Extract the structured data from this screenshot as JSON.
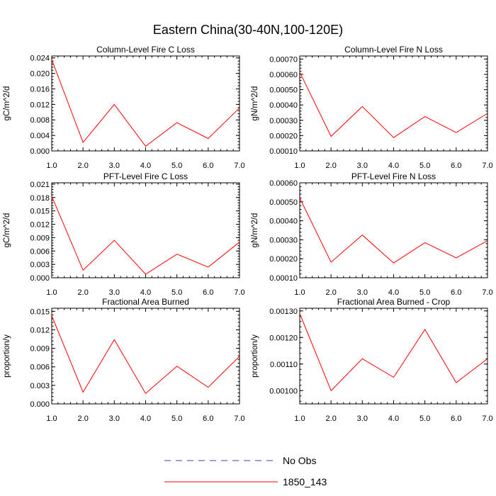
{
  "figure_title": "Eastern China(30-40N,100-120E)",
  "legend": {
    "entries": [
      {
        "label": "No Obs",
        "color": "#3b3bbf",
        "style": "dashed"
      },
      {
        "label": "1850_143",
        "color": "#ff0000",
        "style": "solid"
      }
    ]
  },
  "chart_data": [
    {
      "type": "line",
      "title": "Column-Level Fire C Loss",
      "ylabel": "gC/m^2/d",
      "x": [
        1,
        2,
        3,
        4,
        5,
        6,
        7
      ],
      "xticks": [
        "1.0",
        "2.0",
        "3.0",
        "4.0",
        "5.0",
        "6.0",
        "7.0"
      ],
      "xlim": [
        1,
        7
      ],
      "ylim": [
        0,
        0.0245
      ],
      "yticks": [
        0,
        0.004,
        0.008,
        0.012,
        0.016,
        0.02,
        0.024
      ],
      "yticklabels": [
        "0.000",
        "0.004",
        "0.008",
        "0.012",
        "0.016",
        "0.020",
        "0.024"
      ],
      "series": [
        {
          "name": "1850_143",
          "values": [
            0.0236,
            0.0022,
            0.012,
            0.0012,
            0.0073,
            0.0032,
            0.0111
          ]
        }
      ]
    },
    {
      "type": "line",
      "title": "Column-Level Fire N Loss",
      "ylabel": "gN/m^2/d",
      "x": [
        1,
        2,
        3,
        4,
        5,
        6,
        7
      ],
      "xticks": [
        "1.0",
        "2.0",
        "3.0",
        "4.0",
        "5.0",
        "6.0",
        "7.0"
      ],
      "xlim": [
        1,
        7
      ],
      "ylim": [
        0.0001,
        0.00072
      ],
      "yticks": [
        0.0001,
        0.0002,
        0.0003,
        0.0004,
        0.0005,
        0.0006,
        0.0007
      ],
      "yticklabels": [
        "0.00010",
        "0.00020",
        "0.00030",
        "0.00040",
        "0.00050",
        "0.00060",
        "0.00070"
      ],
      "series": [
        {
          "name": "1850_143",
          "values": [
            0.000615,
            0.000195,
            0.00039,
            0.000187,
            0.000325,
            0.00022,
            0.000345
          ]
        }
      ]
    },
    {
      "type": "line",
      "title": "PFT-Level Fire C Loss",
      "ylabel": "gC/m^2/d",
      "x": [
        1,
        2,
        3,
        4,
        5,
        6,
        7
      ],
      "xticks": [
        "1.0",
        "2.0",
        "3.0",
        "4.0",
        "5.0",
        "6.0",
        "7.0"
      ],
      "xlim": [
        1,
        7
      ],
      "ylim": [
        0,
        0.0213
      ],
      "yticks": [
        0,
        0.003,
        0.006,
        0.009,
        0.012,
        0.015,
        0.018,
        0.021
      ],
      "yticklabels": [
        "0.000",
        "0.003",
        "0.006",
        "0.009",
        "0.012",
        "0.015",
        "0.018",
        "0.021"
      ],
      "series": [
        {
          "name": "1850_143",
          "values": [
            0.0183,
            0.0017,
            0.0084,
            0.0008,
            0.0053,
            0.0024,
            0.008
          ]
        }
      ]
    },
    {
      "type": "line",
      "title": "PFT-Level Fire N Loss",
      "ylabel": "gN/m^2/d",
      "x": [
        1,
        2,
        3,
        4,
        5,
        6,
        7
      ],
      "xticks": [
        "1.0",
        "2.0",
        "3.0",
        "4.0",
        "5.0",
        "6.0",
        "7.0"
      ],
      "xlim": [
        1,
        7
      ],
      "ylim": [
        0.0001,
        0.0006
      ],
      "yticks": [
        0.0001,
        0.0002,
        0.0003,
        0.0004,
        0.0005,
        0.0006
      ],
      "yticklabels": [
        "0.00010",
        "0.00020",
        "0.00030",
        "0.00040",
        "0.00050",
        "0.00060"
      ],
      "series": [
        {
          "name": "1850_143",
          "values": [
            0.00052,
            0.000182,
            0.000325,
            0.000178,
            0.000285,
            0.000205,
            0.000295
          ]
        }
      ]
    },
    {
      "type": "line",
      "title": "Fractional Area Burned",
      "ylabel": "proportion/y",
      "x": [
        1,
        2,
        3,
        4,
        5,
        6,
        7
      ],
      "xticks": [
        "1.0",
        "2.0",
        "3.0",
        "4.0",
        "5.0",
        "6.0",
        "7.0"
      ],
      "xlim": [
        1,
        7
      ],
      "ylim": [
        0,
        0.0155
      ],
      "yticks": [
        0,
        0.003,
        0.006,
        0.009,
        0.012,
        0.015
      ],
      "yticklabels": [
        "0.000",
        "0.003",
        "0.006",
        "0.009",
        "0.012",
        "0.015"
      ],
      "series": [
        {
          "name": "1850_143",
          "values": [
            0.0143,
            0.0019,
            0.0104,
            0.0017,
            0.0061,
            0.0027,
            0.0077
          ]
        }
      ]
    },
    {
      "type": "line",
      "title": "Fractional Area Burned - Crop",
      "ylabel": "proportion/y",
      "x": [
        1,
        2,
        3,
        4,
        5,
        6,
        7
      ],
      "xticks": [
        "1.0",
        "2.0",
        "3.0",
        "4.0",
        "5.0",
        "6.0",
        "7.0"
      ],
      "xlim": [
        1,
        7
      ],
      "ylim": [
        0.00095,
        0.00131
      ],
      "yticks": [
        0.001,
        0.0011,
        0.0012,
        0.0013
      ],
      "yticklabels": [
        "0.00100",
        "0.00110",
        "0.00120",
        "0.00130"
      ],
      "series": [
        {
          "name": "1850_143",
          "values": [
            0.00129,
            0.001,
            0.00112,
            0.00105,
            0.00123,
            0.00103,
            0.00112
          ]
        }
      ]
    }
  ]
}
